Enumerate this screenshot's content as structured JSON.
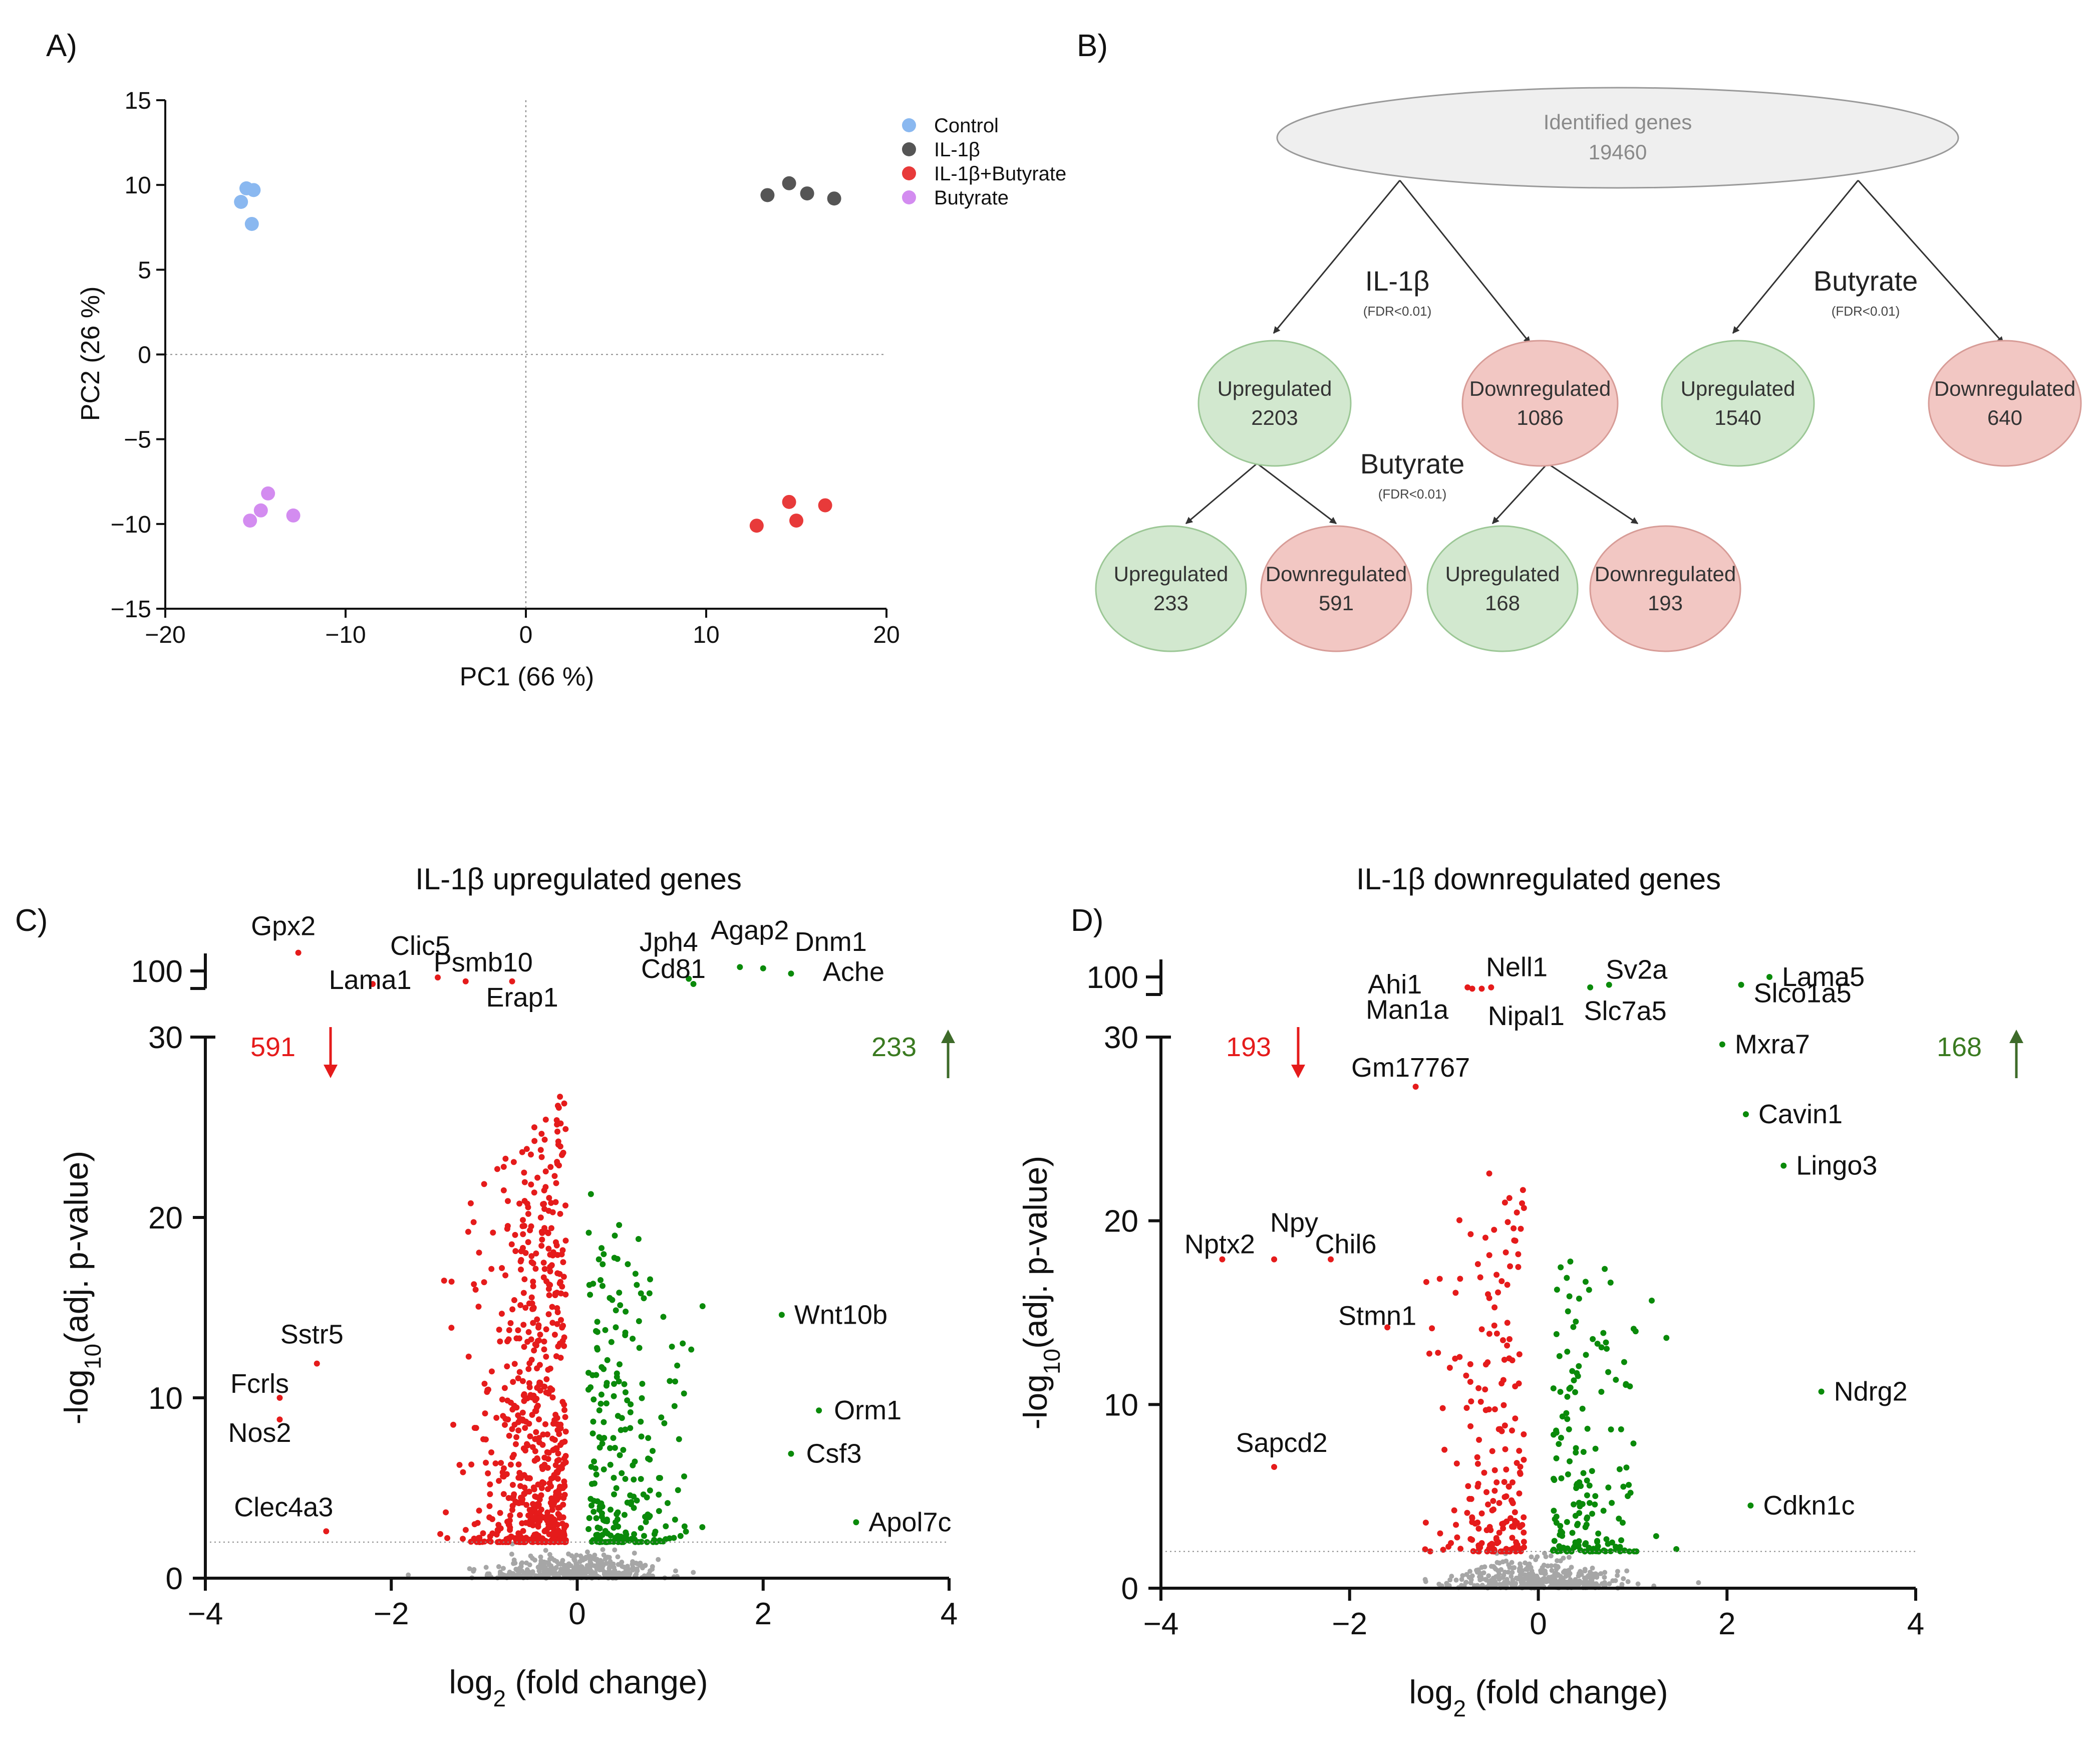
{
  "panel_labels": {
    "a": "A)",
    "b": "B)",
    "c": "C)",
    "d": "D)"
  },
  "colors": {
    "control": "#8ab8f0",
    "il1b": "#555555",
    "il1b_butyrate": "#e83a3a",
    "butyrate": "#d38cf0",
    "up": "#0a8a0a",
    "down": "#e51b1b",
    "ns": "#a6a6a6",
    "up_count": "#3a7a20",
    "arrow_up": "#3e6b2a",
    "green_fill": "#d2e8cf",
    "green_stroke": "#9cc796",
    "red_fill": "#f2c7c3",
    "red_stroke": "#d79c97",
    "root_fill": "#efefef",
    "root_stroke": "#9a9a9a",
    "root_text": "#8a8a8a"
  },
  "chart_data": [
    {
      "id": "pca",
      "type": "scatter",
      "title": "",
      "xlabel": "PC1 (66 %)",
      "ylabel": "PC2 (26 %)",
      "xlim": [
        -20,
        20
      ],
      "ylim": [
        -15,
        15
      ],
      "xticks": [
        -20,
        -10,
        0,
        10,
        20
      ],
      "yticks": [
        -15,
        -10,
        -5,
        0,
        5,
        10,
        15
      ],
      "reference_lines": {
        "x": 0,
        "y": 0
      },
      "legend_position": "top-right",
      "series": [
        {
          "name": "Control",
          "color_key": "control",
          "points": [
            [
              -15.5,
              9.8
            ],
            [
              -15.1,
              9.7
            ],
            [
              -15.8,
              9.0
            ],
            [
              -15.2,
              7.7
            ]
          ]
        },
        {
          "name": "IL-1β",
          "color_key": "il1b",
          "points": [
            [
              13.4,
              9.4
            ],
            [
              14.6,
              10.1
            ],
            [
              15.6,
              9.5
            ],
            [
              17.1,
              9.2
            ]
          ]
        },
        {
          "name": "IL-1β+Butyrate",
          "color_key": "il1b_butyrate",
          "points": [
            [
              12.8,
              -10.1
            ],
            [
              14.6,
              -8.7
            ],
            [
              15.0,
              -9.8
            ],
            [
              16.6,
              -8.9
            ]
          ]
        },
        {
          "name": "Butyrate",
          "color_key": "butyrate",
          "points": [
            [
              -14.3,
              -8.2
            ],
            [
              -14.7,
              -9.2
            ],
            [
              -15.3,
              -9.8
            ],
            [
              -12.9,
              -9.5
            ]
          ]
        }
      ]
    },
    {
      "id": "volcano_up",
      "type": "scatter",
      "title": "IL-1β upregulated genes",
      "xlabel": "log2 (fold change)",
      "ylabel": "-log10(adj. p-value)",
      "xlim": [
        -4,
        4
      ],
      "ylim": [
        0,
        30
      ],
      "ybreak_value": 100,
      "xticks": [
        -4,
        -2,
        0,
        2,
        4
      ],
      "yticks": [
        0,
        10,
        20,
        30
      ],
      "threshold_y": 2,
      "down_count": "591",
      "up_count": "233",
      "labeled_genes": [
        {
          "gene": "Gpx2",
          "x": -3.0,
          "y": 114,
          "group": "down"
        },
        {
          "gene": "Lama1",
          "x": -2.2,
          "y": 90,
          "group": "down"
        },
        {
          "gene": "Clic5",
          "x": -1.5,
          "y": 95,
          "group": "down"
        },
        {
          "gene": "Psmb10",
          "x": -1.2,
          "y": 92,
          "group": "down"
        },
        {
          "gene": "Erap1",
          "x": -0.7,
          "y": 92,
          "group": "down"
        },
        {
          "gene": "Jph4",
          "x": 1.2,
          "y": 94,
          "group": "up"
        },
        {
          "gene": "Cd81",
          "x": 1.25,
          "y": 90,
          "group": "up"
        },
        {
          "gene": "Agap2",
          "x": 1.75,
          "y": 103,
          "group": "up"
        },
        {
          "gene": "Dnm1",
          "x": 2.0,
          "y": 102,
          "group": "up"
        },
        {
          "gene": "Ache",
          "x": 2.3,
          "y": 98,
          "group": "up"
        },
        {
          "gene": "Sstr5",
          "x": -2.8,
          "y": 11.9,
          "group": "down"
        },
        {
          "gene": "Fcrls",
          "x": -3.2,
          "y": 10.0,
          "group": "down"
        },
        {
          "gene": "Nos2",
          "x": -3.2,
          "y": 8.8,
          "group": "down"
        },
        {
          "gene": "Clec4a3",
          "x": -2.7,
          "y": 2.6,
          "group": "down"
        },
        {
          "gene": "Wnt10b",
          "x": 2.2,
          "y": 14.6,
          "group": "up"
        },
        {
          "gene": "Orm1",
          "x": 2.6,
          "y": 9.3,
          "group": "up"
        },
        {
          "gene": "Csf3",
          "x": 2.3,
          "y": 6.9,
          "group": "up"
        },
        {
          "gene": "Apol7c",
          "x": 3.0,
          "y": 3.1,
          "group": "up"
        }
      ]
    },
    {
      "id": "volcano_down",
      "type": "scatter",
      "title": "IL-1β downregulated genes",
      "xlabel": "log2 (fold change)",
      "ylabel": "-log10(adj. p-value)",
      "xlim": [
        -4,
        4
      ],
      "ylim": [
        0,
        30
      ],
      "ybreak_value": 100,
      "xticks": [
        -4,
        -2,
        0,
        2,
        4
      ],
      "yticks": [
        0,
        10,
        20,
        30
      ],
      "threshold_y": 2,
      "down_count": "193",
      "up_count": "168",
      "labeled_genes": [
        {
          "gene": "Ahi1",
          "x": -0.75,
          "y": 92,
          "group": "down"
        },
        {
          "gene": "Nell1",
          "x": -0.6,
          "y": 91,
          "group": "down"
        },
        {
          "gene": "Man1a",
          "x": -0.7,
          "y": 91,
          "group": "down"
        },
        {
          "gene": "Nipal1",
          "x": -0.5,
          "y": 92,
          "group": "down"
        },
        {
          "gene": "Gm17767",
          "x": -1.3,
          "y": 27.3,
          "group": "down"
        },
        {
          "gene": "Sv2a",
          "x": 0.75,
          "y": 94,
          "group": "up"
        },
        {
          "gene": "Slc7a5",
          "x": 0.55,
          "y": 92,
          "group": "up"
        },
        {
          "gene": "Lama5",
          "x": 2.45,
          "y": 100,
          "group": "up"
        },
        {
          "gene": "Slco1a5",
          "x": 2.15,
          "y": 94,
          "group": "up"
        },
        {
          "gene": "Mxra7",
          "x": 1.95,
          "y": 29.6,
          "group": "up"
        },
        {
          "gene": "Cavin1",
          "x": 2.2,
          "y": 25.8,
          "group": "up"
        },
        {
          "gene": "Lingo3",
          "x": 2.6,
          "y": 23.0,
          "group": "up"
        },
        {
          "gene": "Npy",
          "x": -2.8,
          "y": 17.9,
          "group": "down"
        },
        {
          "gene": "Nptx2",
          "x": -3.35,
          "y": 17.9,
          "group": "down"
        },
        {
          "gene": "Chil6",
          "x": -2.2,
          "y": 17.9,
          "group": "down"
        },
        {
          "gene": "Stmn1",
          "x": -1.6,
          "y": 14.2,
          "group": "down"
        },
        {
          "gene": "Sapcd2",
          "x": -2.8,
          "y": 6.6,
          "group": "down"
        },
        {
          "gene": "Ndrg2",
          "x": 3.0,
          "y": 10.7,
          "group": "up"
        },
        {
          "gene": "Cdkn1c",
          "x": 2.25,
          "y": 4.5,
          "group": "up"
        }
      ]
    }
  ],
  "flowchart": {
    "root": {
      "title": "Identified genes",
      "count": "19460"
    },
    "il1b": {
      "label": "IL-1β",
      "fdr": "(FDR<0.01)"
    },
    "butyrate_top": {
      "label": "Butyrate",
      "fdr": "(FDR<0.01)"
    },
    "butyrate_mid": {
      "label": "Butyrate",
      "fdr": "(FDR<0.01)"
    },
    "il1b_up": {
      "label": "Upregulated",
      "count": "2203"
    },
    "il1b_down": {
      "label": "Downregulated",
      "count": "1086"
    },
    "but_up": {
      "label": "Upregulated",
      "count": "1540"
    },
    "but_down": {
      "label": "Downregulated",
      "count": "640"
    },
    "up_up": {
      "label": "Upregulated",
      "count": "233"
    },
    "up_down": {
      "label": "Downregulated",
      "count": "591"
    },
    "down_up": {
      "label": "Upregulated",
      "count": "168"
    },
    "down_down": {
      "label": "Downregulated",
      "count": "193"
    }
  }
}
